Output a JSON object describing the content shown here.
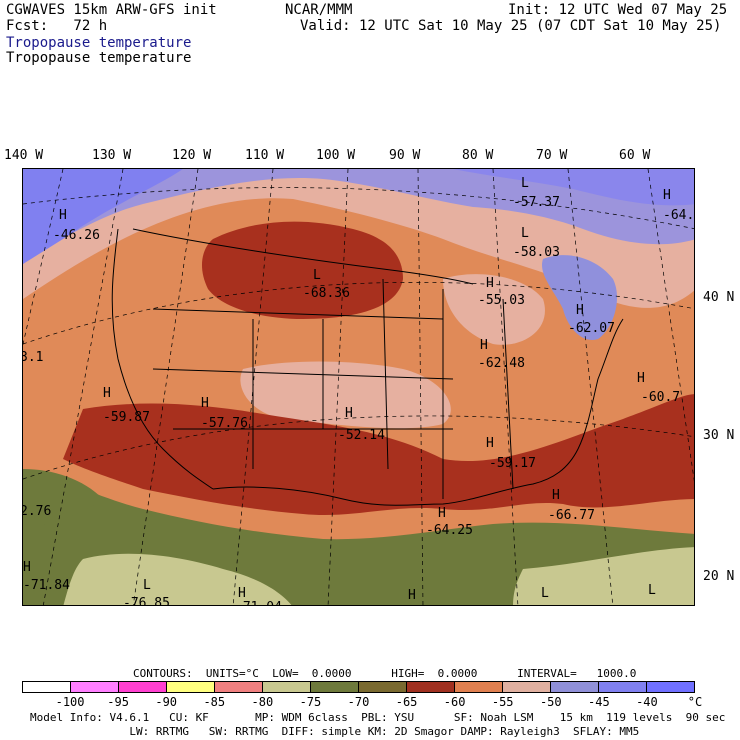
{
  "header": {
    "line1_left": "CGWAVES 15km ARW-GFS init",
    "line1_center": "NCAR/MMM",
    "line1_right": "Init: 12 UTC Wed 07 May 25",
    "line2_left": "Fcst:   72 h",
    "line2_right": "Valid: 12 UTC Sat 10 May 25 (07 CDT Sat 10 May 25)",
    "field_title_1": "Tropopause temperature",
    "field_title_2": "Tropopause temperature"
  },
  "map": {
    "lon_labels": [
      "140 W",
      "130 W",
      "120 W",
      "110 W",
      "100 W",
      "90 W",
      "80 W",
      "70 W",
      "60 W"
    ],
    "lat_labels": [
      "40 N",
      "30 N",
      "20 N"
    ],
    "extrema": [
      {
        "type": "H",
        "value": "-46.26"
      },
      {
        "type": "L",
        "value": "-57.37"
      },
      {
        "type": "L",
        "value": "-58.03"
      },
      {
        "type": "L",
        "value": "-68.36"
      },
      {
        "type": "H",
        "value": "-55.03"
      },
      {
        "type": "H",
        "value": "-62.07"
      },
      {
        "type": "H",
        "value": "-62.48"
      },
      {
        "type": "H",
        "value": "-59.87"
      },
      {
        "type": "H",
        "value": "-57.76"
      },
      {
        "type": "H",
        "value": "-52.14"
      },
      {
        "type": "H",
        "value": "-59.17"
      },
      {
        "type": "H",
        "value": "-60.7"
      },
      {
        "type": "H",
        "value": "-64.25"
      },
      {
        "type": "H",
        "value": "-66.77"
      },
      {
        "type": "H",
        "value": "-71.84"
      },
      {
        "type": "L",
        "value": "-76.85"
      },
      {
        "type": "H",
        "value": "-71.04"
      },
      {
        "type": "H",
        "value": "-64."
      },
      {
        "type": "",
        "value": "3.1"
      },
      {
        "type": "",
        "value": "2.76"
      },
      {
        "type": "H",
        "value": ""
      },
      {
        "type": "L",
        "value": ""
      },
      {
        "type": "L",
        "value": ""
      }
    ]
  },
  "contour_info": {
    "label": "CONTOURS:  UNITS=°C  LOW=  0.0000      HIGH=  0.0000      INTERVAL=   1000.0"
  },
  "legend": {
    "colors": [
      "#ffffff",
      "#ff7fff",
      "#ff40d0",
      "#ffff80",
      "#f08080",
      "#c8c890",
      "#6e7a3c",
      "#7a6a30",
      "#a03020",
      "#e08050",
      "#e0b0a0",
      "#9090d8",
      "#8080f0",
      "#7070ff"
    ],
    "ticks": [
      "-100",
      "-95",
      "-90",
      "-85",
      "-80",
      "-75",
      "-70",
      "-65",
      "-60",
      "-55",
      "-50",
      "-45",
      "-40",
      "°C"
    ]
  },
  "footer": {
    "line1": "Model Info: V4.6.1   CU: KF       MP: WDM 6class  PBL: YSU      SF: Noah LSM    15 km  119 levels  90 sec",
    "line2": "               LW: RRTMG   SW: RRTMG  DIFF: simple KM: 2D Smagor DAMP: Rayleigh3  SFLAY: MM5"
  }
}
